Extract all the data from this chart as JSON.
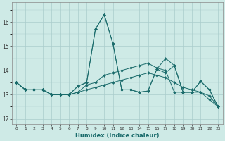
{
  "xlabel": "Humidex (Indice chaleur)",
  "x_ticks": [
    0,
    1,
    2,
    3,
    4,
    5,
    6,
    7,
    8,
    9,
    10,
    11,
    12,
    13,
    14,
    15,
    16,
    17,
    18,
    19,
    20,
    21,
    22,
    23
  ],
  "ylim": [
    11.8,
    16.8
  ],
  "xlim": [
    -0.5,
    23.5
  ],
  "yticks": [
    12,
    13,
    14,
    15,
    16
  ],
  "bg_color": "#ceeae6",
  "grid_color": "#aacccc",
  "line_color": "#1a6b6b",
  "spine_color": "#888888",
  "series": [
    [
      13.5,
      13.2,
      13.2,
      13.2,
      13.0,
      13.0,
      13.0,
      13.35,
      13.5,
      15.7,
      16.3,
      15.1,
      13.2,
      13.2,
      13.1,
      13.15,
      14.05,
      13.9,
      14.2,
      13.1,
      13.1,
      13.55,
      13.2,
      12.5
    ],
    [
      13.5,
      13.2,
      13.2,
      13.2,
      13.0,
      13.0,
      13.0,
      13.35,
      13.5,
      15.7,
      16.3,
      15.1,
      13.2,
      13.2,
      13.1,
      13.15,
      14.05,
      14.5,
      14.2,
      13.1,
      13.1,
      13.55,
      13.2,
      12.5
    ],
    [
      13.5,
      13.2,
      13.2,
      13.2,
      13.0,
      13.0,
      13.0,
      13.1,
      13.4,
      13.5,
      13.8,
      13.9,
      14.0,
      14.1,
      14.2,
      14.3,
      14.1,
      14.0,
      13.1,
      13.1,
      13.1,
      13.1,
      12.8,
      12.5
    ],
    [
      13.5,
      13.2,
      13.2,
      13.2,
      13.0,
      13.0,
      13.0,
      13.1,
      13.2,
      13.3,
      13.4,
      13.5,
      13.6,
      13.7,
      13.8,
      13.9,
      13.8,
      13.7,
      13.5,
      13.3,
      13.2,
      13.1,
      12.95,
      12.5
    ]
  ]
}
